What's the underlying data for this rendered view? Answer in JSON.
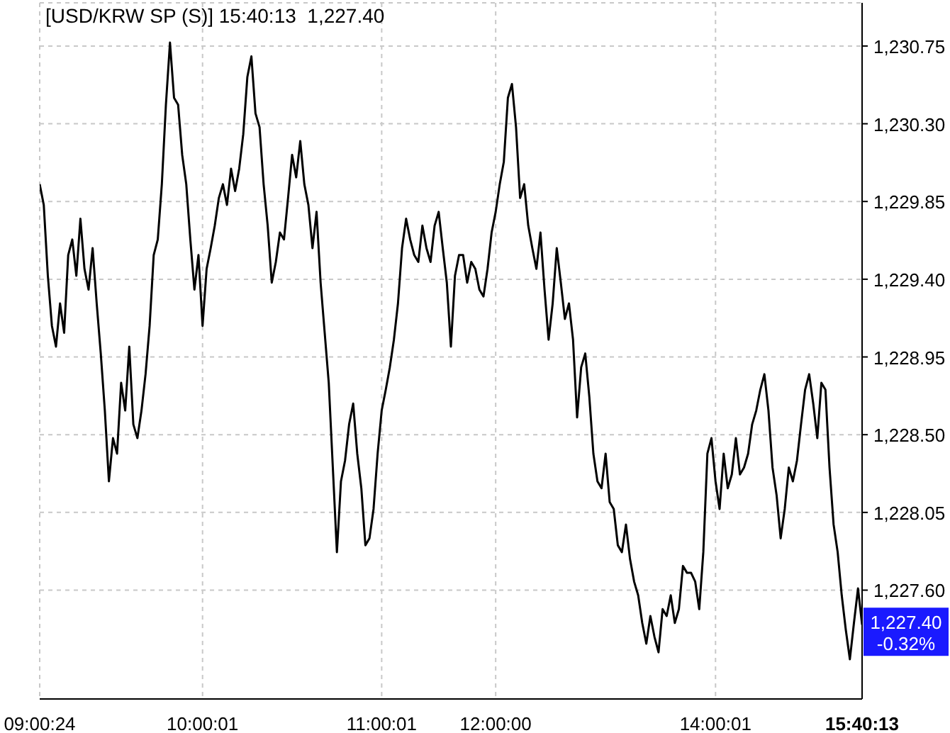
{
  "chart_data": {
    "type": "line",
    "title": "[USD/KRW SP (S)] 15:40:13  1,227.40",
    "categories": [
      "09:00:24",
      null,
      null,
      null,
      null,
      null,
      null,
      null,
      null,
      null,
      null,
      null,
      null,
      null,
      null,
      null,
      null,
      null,
      null,
      null,
      null,
      null,
      null,
      null,
      null,
      null,
      null,
      null,
      null,
      null,
      null,
      null,
      null,
      null,
      null,
      null,
      null,
      null,
      null,
      null,
      "10:00:01",
      null,
      null,
      null,
      null,
      null,
      null,
      null,
      null,
      null,
      null,
      null,
      null,
      null,
      null,
      null,
      null,
      null,
      null,
      null,
      null,
      null,
      null,
      null,
      null,
      null,
      null,
      null,
      null,
      null,
      null,
      null,
      null,
      null,
      null,
      null,
      null,
      null,
      null,
      null,
      null,
      null,
      null,
      null,
      "11:00:01",
      null,
      null,
      null,
      null,
      null,
      null,
      null,
      null,
      null,
      null,
      null,
      null,
      null,
      null,
      null,
      null,
      null,
      null,
      null,
      null,
      null,
      null,
      null,
      null,
      null,
      null,
      null,
      "12:00:00",
      null,
      null,
      null,
      null,
      null,
      null,
      null,
      null,
      null,
      null,
      null,
      null,
      null,
      null,
      null,
      null,
      null,
      null,
      null,
      null,
      null,
      null,
      null,
      null,
      null,
      null,
      null,
      null,
      null,
      null,
      null,
      null,
      null,
      null,
      null,
      null,
      null,
      null,
      null,
      null,
      null,
      null,
      null,
      null,
      null,
      null,
      null,
      null,
      null,
      null,
      null,
      null,
      null,
      "14:00:01",
      null,
      null,
      null,
      null,
      null,
      null,
      null,
      null,
      null,
      null,
      null,
      null,
      null,
      null,
      null,
      null,
      null,
      null,
      null,
      null,
      null,
      null,
      null,
      null,
      null,
      null,
      null,
      null,
      null,
      null,
      null,
      null,
      null,
      null,
      null,
      "15:40:13"
    ],
    "series": [
      {
        "color": "#000000",
        "values": [
          1229.95,
          1229.83,
          1229.42,
          1229.13,
          1229.01,
          1229.26,
          1229.09,
          1229.54,
          1229.63,
          1229.42,
          1229.75,
          1229.46,
          1229.34,
          1229.58,
          1229.26,
          1228.97,
          1228.64,
          1228.23,
          1228.48,
          1228.39,
          1228.8,
          1228.64,
          1229.01,
          1228.56,
          1228.48,
          1228.64,
          1228.85,
          1229.13,
          1229.54,
          1229.63,
          1229.95,
          1230.41,
          1230.77,
          1230.45,
          1230.41,
          1230.12,
          1229.95,
          1229.63,
          1229.34,
          1229.54,
          1229.13,
          1229.46,
          1229.58,
          1229.71,
          1229.87,
          1229.95,
          1229.83,
          1230.04,
          1229.91,
          1230.04,
          1230.24,
          1230.57,
          1230.69,
          1230.36,
          1230.28,
          1229.95,
          1229.71,
          1229.38,
          1229.5,
          1229.67,
          1229.63,
          1229.87,
          1230.12,
          1229.99,
          1230.2,
          1229.95,
          1229.83,
          1229.58,
          1229.79,
          1229.38,
          1229.09,
          1228.8,
          1228.31,
          1227.82,
          1228.23,
          1228.35,
          1228.56,
          1228.68,
          1228.39,
          1228.19,
          1227.86,
          1227.9,
          1228.07,
          1228.39,
          1228.64,
          1228.76,
          1228.89,
          1229.05,
          1229.26,
          1229.58,
          1229.75,
          1229.63,
          1229.54,
          1229.5,
          1229.71,
          1229.58,
          1229.5,
          1229.71,
          1229.79,
          1229.58,
          1229.38,
          1229.01,
          1229.42,
          1229.54,
          1229.54,
          1229.38,
          1229.5,
          1229.46,
          1229.34,
          1229.3,
          1229.46,
          1229.67,
          1229.79,
          1229.95,
          1230.08,
          1230.45,
          1230.53,
          1230.28,
          1229.87,
          1229.95,
          1229.71,
          1229.58,
          1229.46,
          1229.67,
          1229.34,
          1229.05,
          1229.26,
          1229.58,
          1229.38,
          1229.17,
          1229.26,
          1229.05,
          1228.6,
          1228.89,
          1228.97,
          1228.72,
          1228.39,
          1228.23,
          1228.19,
          1228.39,
          1228.11,
          1228.07,
          1227.86,
          1227.82,
          1227.98,
          1227.78,
          1227.65,
          1227.57,
          1227.41,
          1227.29,
          1227.45,
          1227.33,
          1227.24,
          1227.49,
          1227.45,
          1227.57,
          1227.41,
          1227.49,
          1227.74,
          1227.7,
          1227.7,
          1227.65,
          1227.49,
          1227.82,
          1228.39,
          1228.48,
          1228.23,
          1228.07,
          1228.39,
          1228.19,
          1228.27,
          1228.48,
          1228.27,
          1228.31,
          1228.39,
          1228.56,
          1228.64,
          1228.76,
          1228.85,
          1228.64,
          1228.31,
          1228.15,
          1227.9,
          1228.07,
          1228.31,
          1228.23,
          1228.35,
          1228.56,
          1228.76,
          1228.85,
          1228.68,
          1228.48,
          1228.8,
          1228.76,
          1228.31,
          1227.98,
          1227.82,
          1227.57,
          1227.37,
          1227.2,
          1227.41,
          1227.61,
          1227.4
        ]
      }
    ],
    "ylim": [
      1226.97,
      1231.0
    ],
    "yticks": [
      {
        "value": 1227.6,
        "label": "1,227.60"
      },
      {
        "value": 1228.05,
        "label": "1,228.05"
      },
      {
        "value": 1228.5,
        "label": "1,228.50"
      },
      {
        "value": 1228.95,
        "label": "1,228.95"
      },
      {
        "value": 1229.4,
        "label": "1,229.40"
      },
      {
        "value": 1229.85,
        "label": "1,229.85"
      },
      {
        "value": 1230.3,
        "label": "1,230.30"
      },
      {
        "value": 1230.75,
        "label": "1,230.75"
      }
    ],
    "grid": true,
    "line_style": "solid",
    "marker": "none",
    "annotations": [
      "1,227.40",
      "-0.32%"
    ]
  }
}
